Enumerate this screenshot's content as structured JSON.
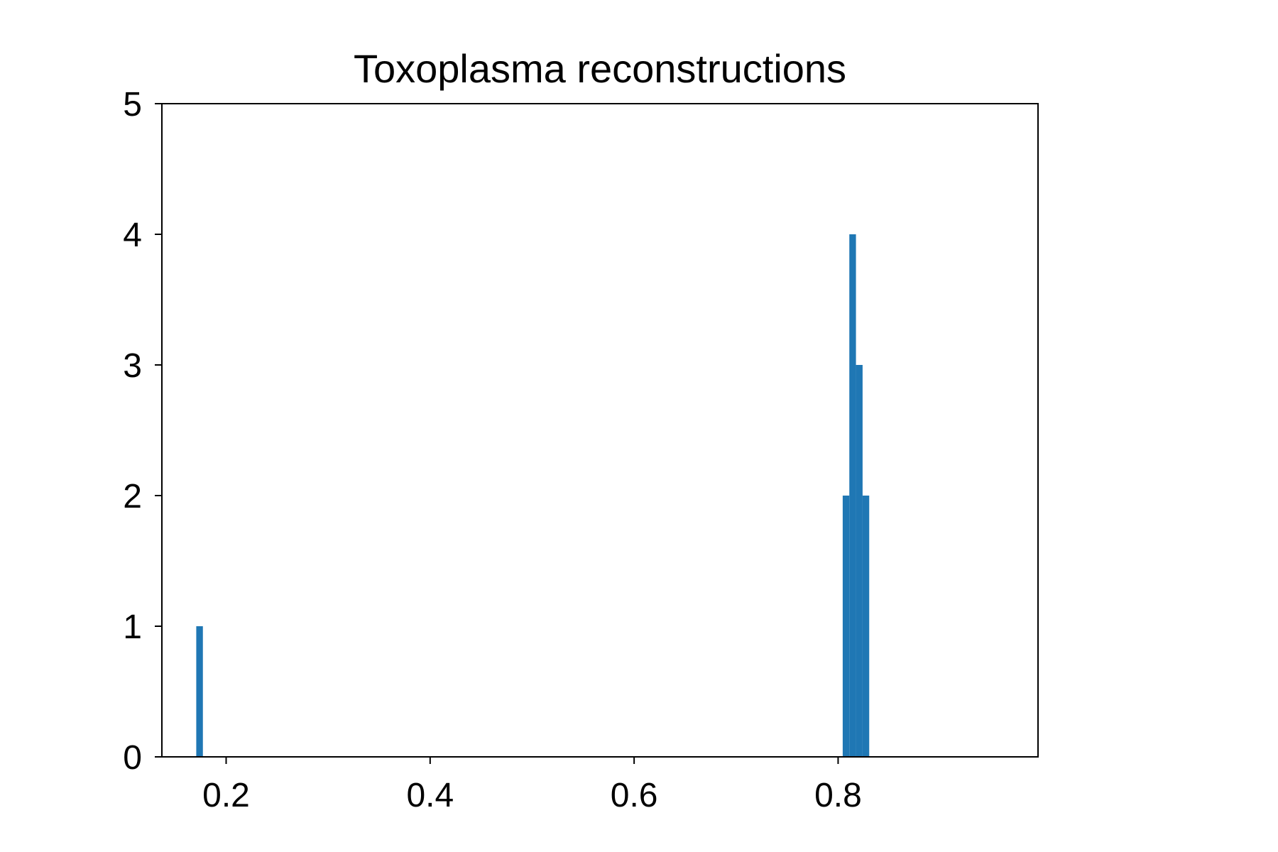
{
  "chart_data": {
    "type": "bar",
    "title": "Toxoplasma reconstructions",
    "xlabel": "",
    "ylabel": "",
    "xlim": [
      0.137,
      0.996
    ],
    "ylim": [
      0,
      5
    ],
    "x_ticks": [
      {
        "value": 0.2,
        "label": "0.2"
      },
      {
        "value": 0.4,
        "label": "0.4"
      },
      {
        "value": 0.6,
        "label": "0.6"
      },
      {
        "value": 0.8,
        "label": "0.8"
      }
    ],
    "y_ticks": [
      {
        "value": 0,
        "label": "0"
      },
      {
        "value": 1,
        "label": "1"
      },
      {
        "value": 2,
        "label": "2"
      },
      {
        "value": 3,
        "label": "3"
      },
      {
        "value": 4,
        "label": "4"
      },
      {
        "value": 5,
        "label": "5"
      }
    ],
    "bin_width": 0.0065,
    "bins": [
      {
        "x_start": 0.1707,
        "count": 1
      },
      {
        "x_start": 0.8045,
        "count": 2
      },
      {
        "x_start": 0.811,
        "count": 4
      },
      {
        "x_start": 0.8175,
        "count": 3
      },
      {
        "x_start": 0.824,
        "count": 2
      }
    ],
    "grid": false,
    "bar_color": "#1f77b4"
  }
}
